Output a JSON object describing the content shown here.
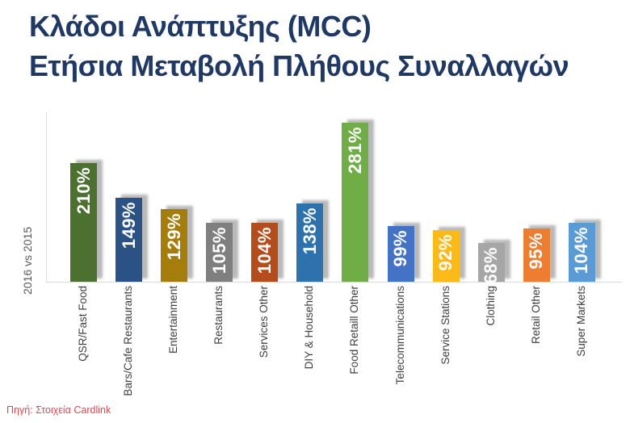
{
  "title": {
    "line1": "Κλάδοι Ανάπτυξης (MCC)",
    "line2": "Ετήσια Μεταβολή Πλήθους Συναλλαγών",
    "color": "#1F3864"
  },
  "source": {
    "label": "Πηγή: Στοιχεία Cardlink",
    "color": "#E8424E"
  },
  "chart_data": {
    "type": "bar",
    "title": "Κλάδοι Ανάπτυξης (MCC) — Ετήσια Μεταβολή Πλήθους Συναλλαγών",
    "ylabel": "2016 vs 2015",
    "xlabel": "",
    "ylim": [
      0,
      300
    ],
    "grid": false,
    "legend": false,
    "data_label_style": "inside-end, rotated 90°, white bold, suffix %",
    "x_label_style": "rotated 90°, reading bottom-to-top",
    "categories": [
      "QSR/Fast Food",
      "Bars/Cafe Restaurants",
      "Entertainment",
      "Restaurants",
      "Services Other",
      "DIY & Household",
      "Food Retaill Other",
      "Telecommunications",
      "Service Stations",
      "Clothing",
      "Retail Other",
      "Super Markets"
    ],
    "values": [
      210,
      149,
      129,
      105,
      104,
      138,
      281,
      99,
      92,
      68,
      95,
      104
    ],
    "bar_labels": [
      "210%",
      "149%",
      "129%",
      "105%",
      "104%",
      "138%",
      "281%",
      "99%",
      "92%",
      "68%",
      "95%",
      "104%"
    ],
    "colors": [
      "#4C7030",
      "#2A5285",
      "#A47D0B",
      "#7F7F7F",
      "#B44D1B",
      "#2E72AD",
      "#70AD47",
      "#4472C4",
      "#FBBA17",
      "#A6A6A6",
      "#ED7D31",
      "#5B9BD5"
    ],
    "axis_color": "#D9D9D9"
  }
}
